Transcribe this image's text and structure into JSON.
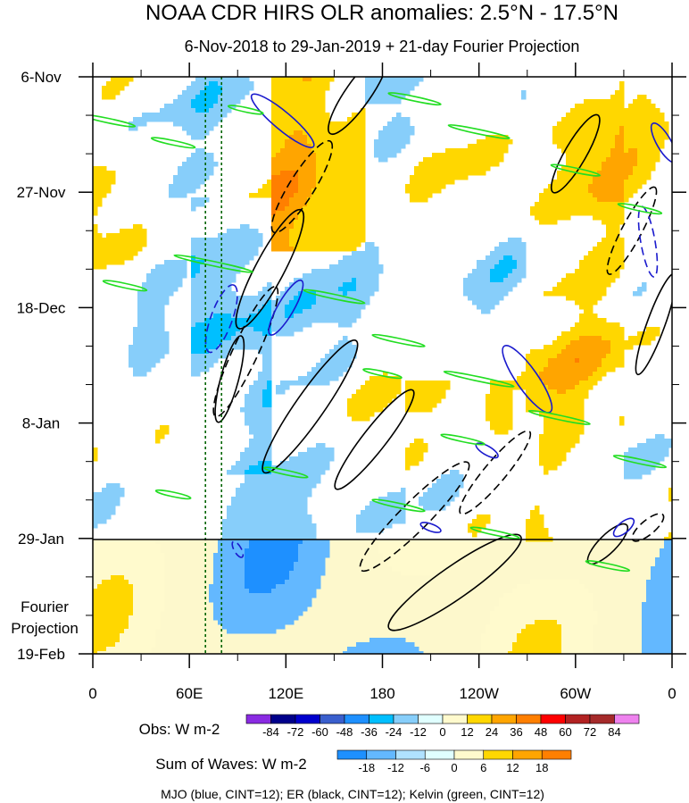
{
  "chart_data": {
    "type": "heatmap",
    "title": "NOAA CDR HIRS OLR anomalies: 2.5°N - 17.5°N",
    "subtitle": "6-Nov-2018 to 29-Jan-2019 + 21-day Fourier Projection",
    "x_ticks": [
      "0",
      "60E",
      "120E",
      "180",
      "120W",
      "60W",
      "0"
    ],
    "x_tick_lon": [
      0,
      60,
      120,
      180,
      240,
      300,
      360
    ],
    "x_range": [
      0,
      360
    ],
    "y_ticks": [
      "6-Nov",
      "27-Nov",
      "18-Dec",
      "8-Jan",
      "29-Jan",
      "19-Feb"
    ],
    "y_tick_day": [
      0,
      21,
      42,
      63,
      84,
      105
    ],
    "y_range_days": [
      0,
      105
    ],
    "observed_end_day": 84,
    "projection_label": "Fourier Projection",
    "reference_longitudes": [
      70,
      80
    ],
    "obs_colorbar": {
      "label": "Obs: W m-2",
      "levels": [
        "-84",
        "-72",
        "-60",
        "-48",
        "-36",
        "-24",
        "-12",
        "0",
        "12",
        "24",
        "36",
        "48",
        "60",
        "72",
        "84"
      ],
      "colors": [
        "#8a2be2",
        "#00008b",
        "#0000cd",
        "#3a5fcd",
        "#1e90ff",
        "#00bfff",
        "#87cefa",
        "#e0ffff",
        "#fffacd",
        "#ffd700",
        "#ffa500",
        "#ff7f00",
        "#ff0000",
        "#b22222",
        "#a52a2a",
        "#ee82ee"
      ]
    },
    "waves_colorbar": {
      "label": "Sum of Waves: W m-2",
      "levels": [
        "-18",
        "-12",
        "-6",
        "0",
        "6",
        "12",
        "18"
      ],
      "colors": [
        "#1e90ff",
        "#63b8ff",
        "#b0e2ff",
        "#e0ffff",
        "#fffacd",
        "#ffd700",
        "#ffa500",
        "#ff7f00"
      ]
    },
    "contour_legend": "MJO (blue, CINT=12); ER (black, CINT=12); Kelvin (green, CINT=12)",
    "contour_colors": {
      "mjo": "#1a1acd",
      "er": "#000000",
      "kelvin": "#22dd22"
    }
  }
}
